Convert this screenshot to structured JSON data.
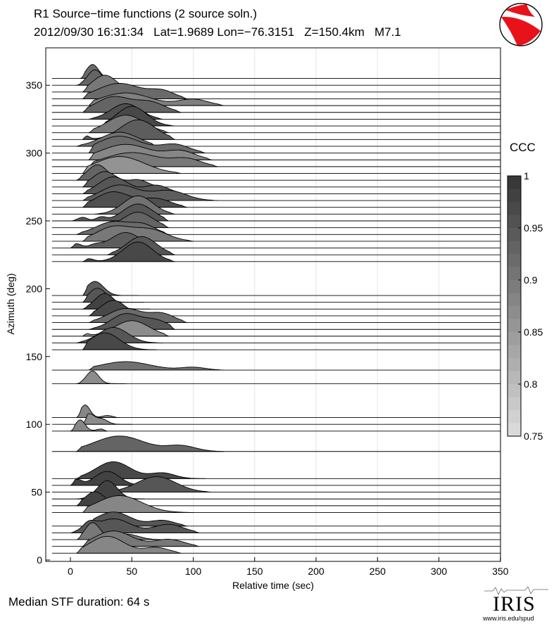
{
  "header": {
    "title_line1": "R1 Source−time functions (2 source soln.)",
    "title_line2": "2012/09/30 16:31:34   Lat=1.9689 Lon=−76.3151   Z=150.4km   M7.1"
  },
  "footer": {
    "median_text": "Median STF duration: 64 s",
    "logo_text": "IRIS",
    "logo_url": "www.iris.edu/spud"
  },
  "colorbar": {
    "title": "CCC",
    "ticks": [
      "1",
      "0.95",
      "0.9",
      "0.85",
      "0.8",
      "0.75"
    ],
    "range": [
      0.75,
      1.0
    ]
  },
  "chart_data": {
    "type": "area",
    "xlabel": "Relative time (sec)",
    "ylabel": "Azimuth (deg)",
    "xlim": [
      -20,
      350
    ],
    "ylim": [
      0,
      380
    ],
    "xticks": [
      "0",
      "50",
      "100",
      "150",
      "200",
      "250",
      "300",
      "350"
    ],
    "yticks": [
      "0",
      "50",
      "100",
      "150",
      "200",
      "250",
      "300",
      "350"
    ],
    "grid": "vertical",
    "traces": [
      {
        "az": 355,
        "ccc": 0.92,
        "start": 8,
        "end": 40,
        "bumps": [
          [
            18,
            5,
            20
          ]
        ]
      },
      {
        "az": 350,
        "ccc": 0.93,
        "start": 5,
        "end": 45,
        "bumps": [
          [
            20,
            6,
            22
          ]
        ]
      },
      {
        "az": 345,
        "ccc": 0.9,
        "start": 10,
        "end": 60,
        "bumps": [
          [
            28,
            10,
            24
          ]
        ]
      },
      {
        "az": 340,
        "ccc": 0.92,
        "start": 10,
        "end": 95,
        "bumps": [
          [
            40,
            18,
            22
          ],
          [
            75,
            10,
            10
          ]
        ]
      },
      {
        "az": 335,
        "ccc": 0.89,
        "start": 15,
        "end": 125,
        "bumps": [
          [
            45,
            20,
            18
          ],
          [
            100,
            12,
            9
          ]
        ]
      },
      {
        "az": 330,
        "ccc": 0.93,
        "start": 10,
        "end": 90,
        "bumps": [
          [
            35,
            14,
            22
          ],
          [
            65,
            12,
            14
          ]
        ]
      },
      {
        "az": 325,
        "ccc": 0.96,
        "start": 15,
        "end": 75,
        "bumps": [
          [
            45,
            12,
            22
          ]
        ]
      },
      {
        "az": 320,
        "ccc": 0.97,
        "start": 25,
        "end": 85,
        "bumps": [
          [
            50,
            12,
            28
          ]
        ]
      },
      {
        "az": 315,
        "ccc": 0.9,
        "start": 15,
        "end": 80,
        "bumps": [
          [
            45,
            15,
            25
          ]
        ]
      },
      {
        "az": 310,
        "ccc": 0.94,
        "start": 10,
        "end": 85,
        "bumps": [
          [
            10,
            4,
            8
          ],
          [
            55,
            14,
            28
          ]
        ]
      },
      {
        "az": 305,
        "ccc": 0.91,
        "start": 5,
        "end": 70,
        "bumps": [
          [
            40,
            15,
            20
          ]
        ]
      },
      {
        "az": 300,
        "ccc": 0.92,
        "start": 15,
        "end": 110,
        "bumps": [
          [
            40,
            18,
            24
          ],
          [
            85,
            12,
            12
          ]
        ]
      },
      {
        "az": 295,
        "ccc": 0.88,
        "start": 15,
        "end": 115,
        "bumps": [
          [
            45,
            20,
            22
          ],
          [
            90,
            12,
            12
          ]
        ]
      },
      {
        "az": 290,
        "ccc": 0.9,
        "start": 15,
        "end": 120,
        "bumps": [
          [
            50,
            22,
            20
          ],
          [
            95,
            12,
            10
          ]
        ]
      },
      {
        "az": 285,
        "ccc": 0.86,
        "start": 10,
        "end": 90,
        "bumps": [
          [
            40,
            20,
            24
          ]
        ]
      },
      {
        "az": 280,
        "ccc": 0.93,
        "start": 5,
        "end": 60,
        "bumps": [
          [
            22,
            8,
            22
          ]
        ]
      },
      {
        "az": 275,
        "ccc": 0.94,
        "start": 10,
        "end": 75,
        "bumps": [
          [
            28,
            10,
            22
          ],
          [
            55,
            8,
            10
          ]
        ]
      },
      {
        "az": 270,
        "ccc": 0.95,
        "start": 10,
        "end": 90,
        "bumps": [
          [
            35,
            12,
            24
          ],
          [
            70,
            10,
            12
          ]
        ]
      },
      {
        "az": 265,
        "ccc": 0.94,
        "start": 10,
        "end": 120,
        "bumps": [
          [
            40,
            15,
            22
          ],
          [
            80,
            14,
            14
          ]
        ]
      },
      {
        "az": 260,
        "ccc": 0.96,
        "start": 10,
        "end": 95,
        "bumps": [
          [
            35,
            14,
            22
          ],
          [
            70,
            12,
            12
          ]
        ]
      },
      {
        "az": 255,
        "ccc": 0.91,
        "start": 20,
        "end": 85,
        "bumps": [
          [
            55,
            12,
            26
          ]
        ]
      },
      {
        "az": 250,
        "ccc": 0.95,
        "start": 0,
        "end": 80,
        "bumps": [
          [
            10,
            4,
            5
          ],
          [
            25,
            4,
            5
          ],
          [
            55,
            12,
            24
          ]
        ]
      },
      {
        "az": 245,
        "ccc": 0.93,
        "start": 20,
        "end": 80,
        "bumps": [
          [
            55,
            12,
            22
          ]
        ]
      },
      {
        "az": 240,
        "ccc": 0.92,
        "start": 5,
        "end": 80,
        "bumps": [
          [
            35,
            14,
            18
          ],
          [
            60,
            10,
            12
          ]
        ]
      },
      {
        "az": 235,
        "ccc": 0.9,
        "start": 10,
        "end": 100,
        "bumps": [
          [
            35,
            14,
            20
          ],
          [
            65,
            14,
            16
          ]
        ]
      },
      {
        "az": 230,
        "ccc": 0.94,
        "start": 0,
        "end": 75,
        "bumps": [
          [
            5,
            4,
            6
          ],
          [
            20,
            5,
            4
          ],
          [
            45,
            12,
            22
          ]
        ]
      },
      {
        "az": 225,
        "ccc": 0.95,
        "start": 30,
        "end": 85,
        "bumps": [
          [
            58,
            12,
            26
          ]
        ]
      },
      {
        "az": 220,
        "ccc": 0.97,
        "start": 10,
        "end": 85,
        "bumps": [
          [
            15,
            4,
            4
          ],
          [
            55,
            12,
            28
          ]
        ]
      },
      {
        "az": 195,
        "ccc": 0.94,
        "start": 10,
        "end": 55,
        "bumps": [
          [
            20,
            7,
            20
          ]
        ]
      },
      {
        "az": 190,
        "ccc": 0.95,
        "start": 10,
        "end": 60,
        "bumps": [
          [
            22,
            7,
            20
          ]
        ]
      },
      {
        "az": 185,
        "ccc": 0.98,
        "start": 10,
        "end": 65,
        "bumps": [
          [
            28,
            8,
            22
          ]
        ]
      },
      {
        "az": 180,
        "ccc": 0.97,
        "start": 15,
        "end": 75,
        "bumps": [
          [
            35,
            10,
            22
          ]
        ]
      },
      {
        "az": 175,
        "ccc": 0.92,
        "start": 15,
        "end": 95,
        "bumps": [
          [
            45,
            14,
            20
          ],
          [
            75,
            10,
            12
          ]
        ]
      },
      {
        "az": 170,
        "ccc": 0.95,
        "start": 15,
        "end": 85,
        "bumps": [
          [
            45,
            12,
            22
          ],
          [
            70,
            10,
            12
          ]
        ]
      },
      {
        "az": 165,
        "ccc": 0.87,
        "start": 10,
        "end": 80,
        "bumps": [
          [
            10,
            4,
            5
          ],
          [
            50,
            14,
            22
          ]
        ]
      },
      {
        "az": 160,
        "ccc": 0.95,
        "start": 5,
        "end": 75,
        "bumps": [
          [
            35,
            12,
            22
          ]
        ]
      },
      {
        "az": 155,
        "ccc": 0.97,
        "start": 10,
        "end": 70,
        "bumps": [
          [
            28,
            12,
            24
          ]
        ]
      },
      {
        "az": 140,
        "ccc": 0.91,
        "start": 15,
        "end": 125,
        "bumps": [
          [
            45,
            20,
            12
          ],
          [
            100,
            10,
            4
          ]
        ]
      },
      {
        "az": 130,
        "ccc": 0.87,
        "start": 5,
        "end": 45,
        "bumps": [
          [
            18,
            5,
            18
          ]
        ]
      },
      {
        "az": 105,
        "ccc": 0.88,
        "start": 5,
        "end": 40,
        "bumps": [
          [
            12,
            4,
            18
          ],
          [
            30,
            4,
            3
          ]
        ]
      },
      {
        "az": 100,
        "ccc": 0.87,
        "start": 10,
        "end": 50,
        "bumps": [
          [
            15,
            4,
            14
          ],
          [
            25,
            5,
            8
          ]
        ]
      },
      {
        "az": 95,
        "ccc": 0.88,
        "start": 0,
        "end": 30,
        "bumps": [
          [
            8,
            4,
            16
          ],
          [
            25,
            4,
            3
          ]
        ]
      },
      {
        "az": 80,
        "ccc": 0.93,
        "start": 5,
        "end": 125,
        "bumps": [
          [
            40,
            20,
            22
          ],
          [
            90,
            12,
            8
          ]
        ]
      },
      {
        "az": 60,
        "ccc": 0.97,
        "start": 5,
        "end": 110,
        "bumps": [
          [
            35,
            14,
            24
          ],
          [
            75,
            10,
            8
          ]
        ]
      },
      {
        "az": 55,
        "ccc": 0.98,
        "start": 0,
        "end": 75,
        "bumps": [
          [
            5,
            4,
            8
          ],
          [
            30,
            10,
            20
          ]
        ]
      },
      {
        "az": 50,
        "ccc": 0.95,
        "start": 30,
        "end": 115,
        "bumps": [
          [
            70,
            16,
            22
          ]
        ]
      },
      {
        "az": 45,
        "ccc": 0.98,
        "start": 5,
        "end": 60,
        "bumps": [
          [
            30,
            8,
            26
          ]
        ]
      },
      {
        "az": 40,
        "ccc": 0.98,
        "start": 5,
        "end": 55,
        "bumps": [
          [
            20,
            8,
            20
          ]
        ]
      },
      {
        "az": 35,
        "ccc": 0.88,
        "start": 10,
        "end": 100,
        "bumps": [
          [
            40,
            18,
            24
          ]
        ]
      },
      {
        "az": 25,
        "ccc": 0.95,
        "start": 15,
        "end": 95,
        "bumps": [
          [
            35,
            14,
            20
          ],
          [
            75,
            10,
            8
          ]
        ]
      },
      {
        "az": 20,
        "ccc": 0.95,
        "start": 0,
        "end": 105,
        "bumps": [
          [
            15,
            5,
            10
          ],
          [
            35,
            14,
            20
          ],
          [
            80,
            12,
            12
          ]
        ]
      },
      {
        "az": 15,
        "ccc": 0.9,
        "start": 5,
        "end": 75,
        "bumps": [
          [
            18,
            6,
            24
          ],
          [
            45,
            10,
            8
          ]
        ]
      },
      {
        "az": 10,
        "ccc": 0.9,
        "start": 10,
        "end": 105,
        "bumps": [
          [
            35,
            15,
            22
          ],
          [
            80,
            12,
            10
          ]
        ]
      },
      {
        "az": 5,
        "ccc": 0.88,
        "start": 5,
        "end": 90,
        "bumps": [
          [
            30,
            14,
            24
          ],
          [
            70,
            10,
            8
          ]
        ]
      }
    ]
  }
}
